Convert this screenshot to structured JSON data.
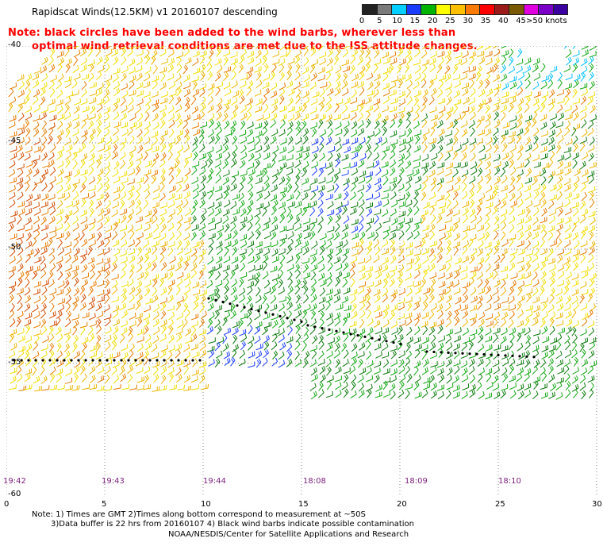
{
  "header": {
    "title": "Rapidscat Winds(12.5KM) v1 20160107 descending",
    "note_line1": "Note: black circles have been added to the wind barbs, wherever less than",
    "note_line2": "optimal wind retrieval conditions are met due to the ISS attitude changes."
  },
  "legend": {
    "colors": [
      "#222222",
      "#7a7a7a",
      "#00cfff",
      "#1a3cff",
      "#00b400",
      "#ffff00",
      "#ffc000",
      "#ff7a00",
      "#ff0000",
      "#9b1a1a",
      "#7a5a00",
      "#e000e0",
      "#7a00c8",
      "#3a00a0"
    ],
    "labels": [
      "0",
      "5",
      "10",
      "15",
      "20",
      "25",
      "30",
      "35",
      "40",
      "45",
      ">50 knots"
    ]
  },
  "map": {
    "lat_labels": [
      "-40",
      "-45",
      "-50",
      "-55",
      "-60"
    ],
    "lon_labels": [
      "0",
      "5",
      "10",
      "15",
      "20",
      "25",
      "30"
    ],
    "time_labels": [
      "19:42",
      "19:43",
      "19:44",
      "18:08",
      "18:09",
      "18:10"
    ]
  },
  "footer": {
    "line1": "Note: 1) Times are GMT 2)Times along bottom correspond to measurement at ~50S",
    "line2": "3)Data buffer is 22 hrs from 20160107 4) Black wind barbs indicate possible contamination",
    "line3": "NOAA/NESDIS/Center for Satellite Applications and Research"
  }
}
